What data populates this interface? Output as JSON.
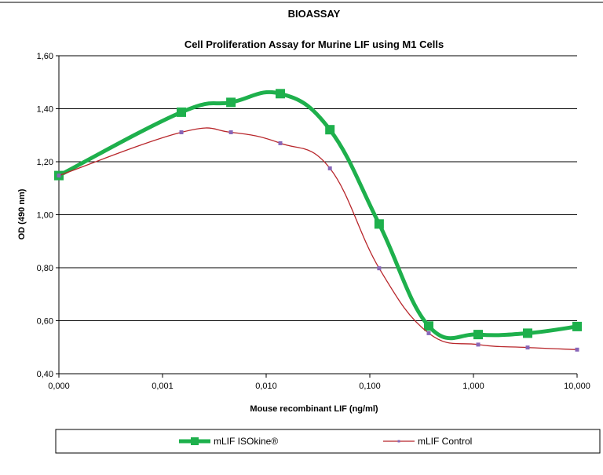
{
  "chart_data": {
    "type": "line",
    "supertitle": "BIOASSAY",
    "title": "Cell Proliferation Assay for Murine LIF using M1 Cells",
    "xlabel": "Mouse recombinant LIF (ng/ml)",
    "ylabel": "OD (490 nm)",
    "x_scale": "log",
    "x_ticks": [
      "0,000",
      "0,001",
      "0,010",
      "0,100",
      "1,000",
      "10,000"
    ],
    "y_ticks": [
      "0,40",
      "0,60",
      "0,80",
      "1,00",
      "1,20",
      "1,40",
      "1,60"
    ],
    "ylim": [
      0.4,
      1.6
    ],
    "grid": "horizontal",
    "legend_position": "bottom",
    "x": [
      0.0001,
      0.00152,
      0.00457,
      0.0137,
      0.0412,
      0.123,
      0.37,
      1.11,
      3.33,
      10.0
    ],
    "series": [
      {
        "name": "mLIF ISOkine®",
        "color": "#1eb04c",
        "values": [
          1.148,
          1.387,
          1.424,
          1.457,
          1.321,
          0.965,
          0.58,
          0.548,
          0.553,
          0.578
        ]
      },
      {
        "name": "mLIF Control",
        "color": "#b8262b",
        "marker_color": "#8866b8",
        "values": [
          1.148,
          1.311,
          1.311,
          1.27,
          1.175,
          0.798,
          0.553,
          0.51,
          0.499,
          0.491
        ]
      }
    ]
  }
}
